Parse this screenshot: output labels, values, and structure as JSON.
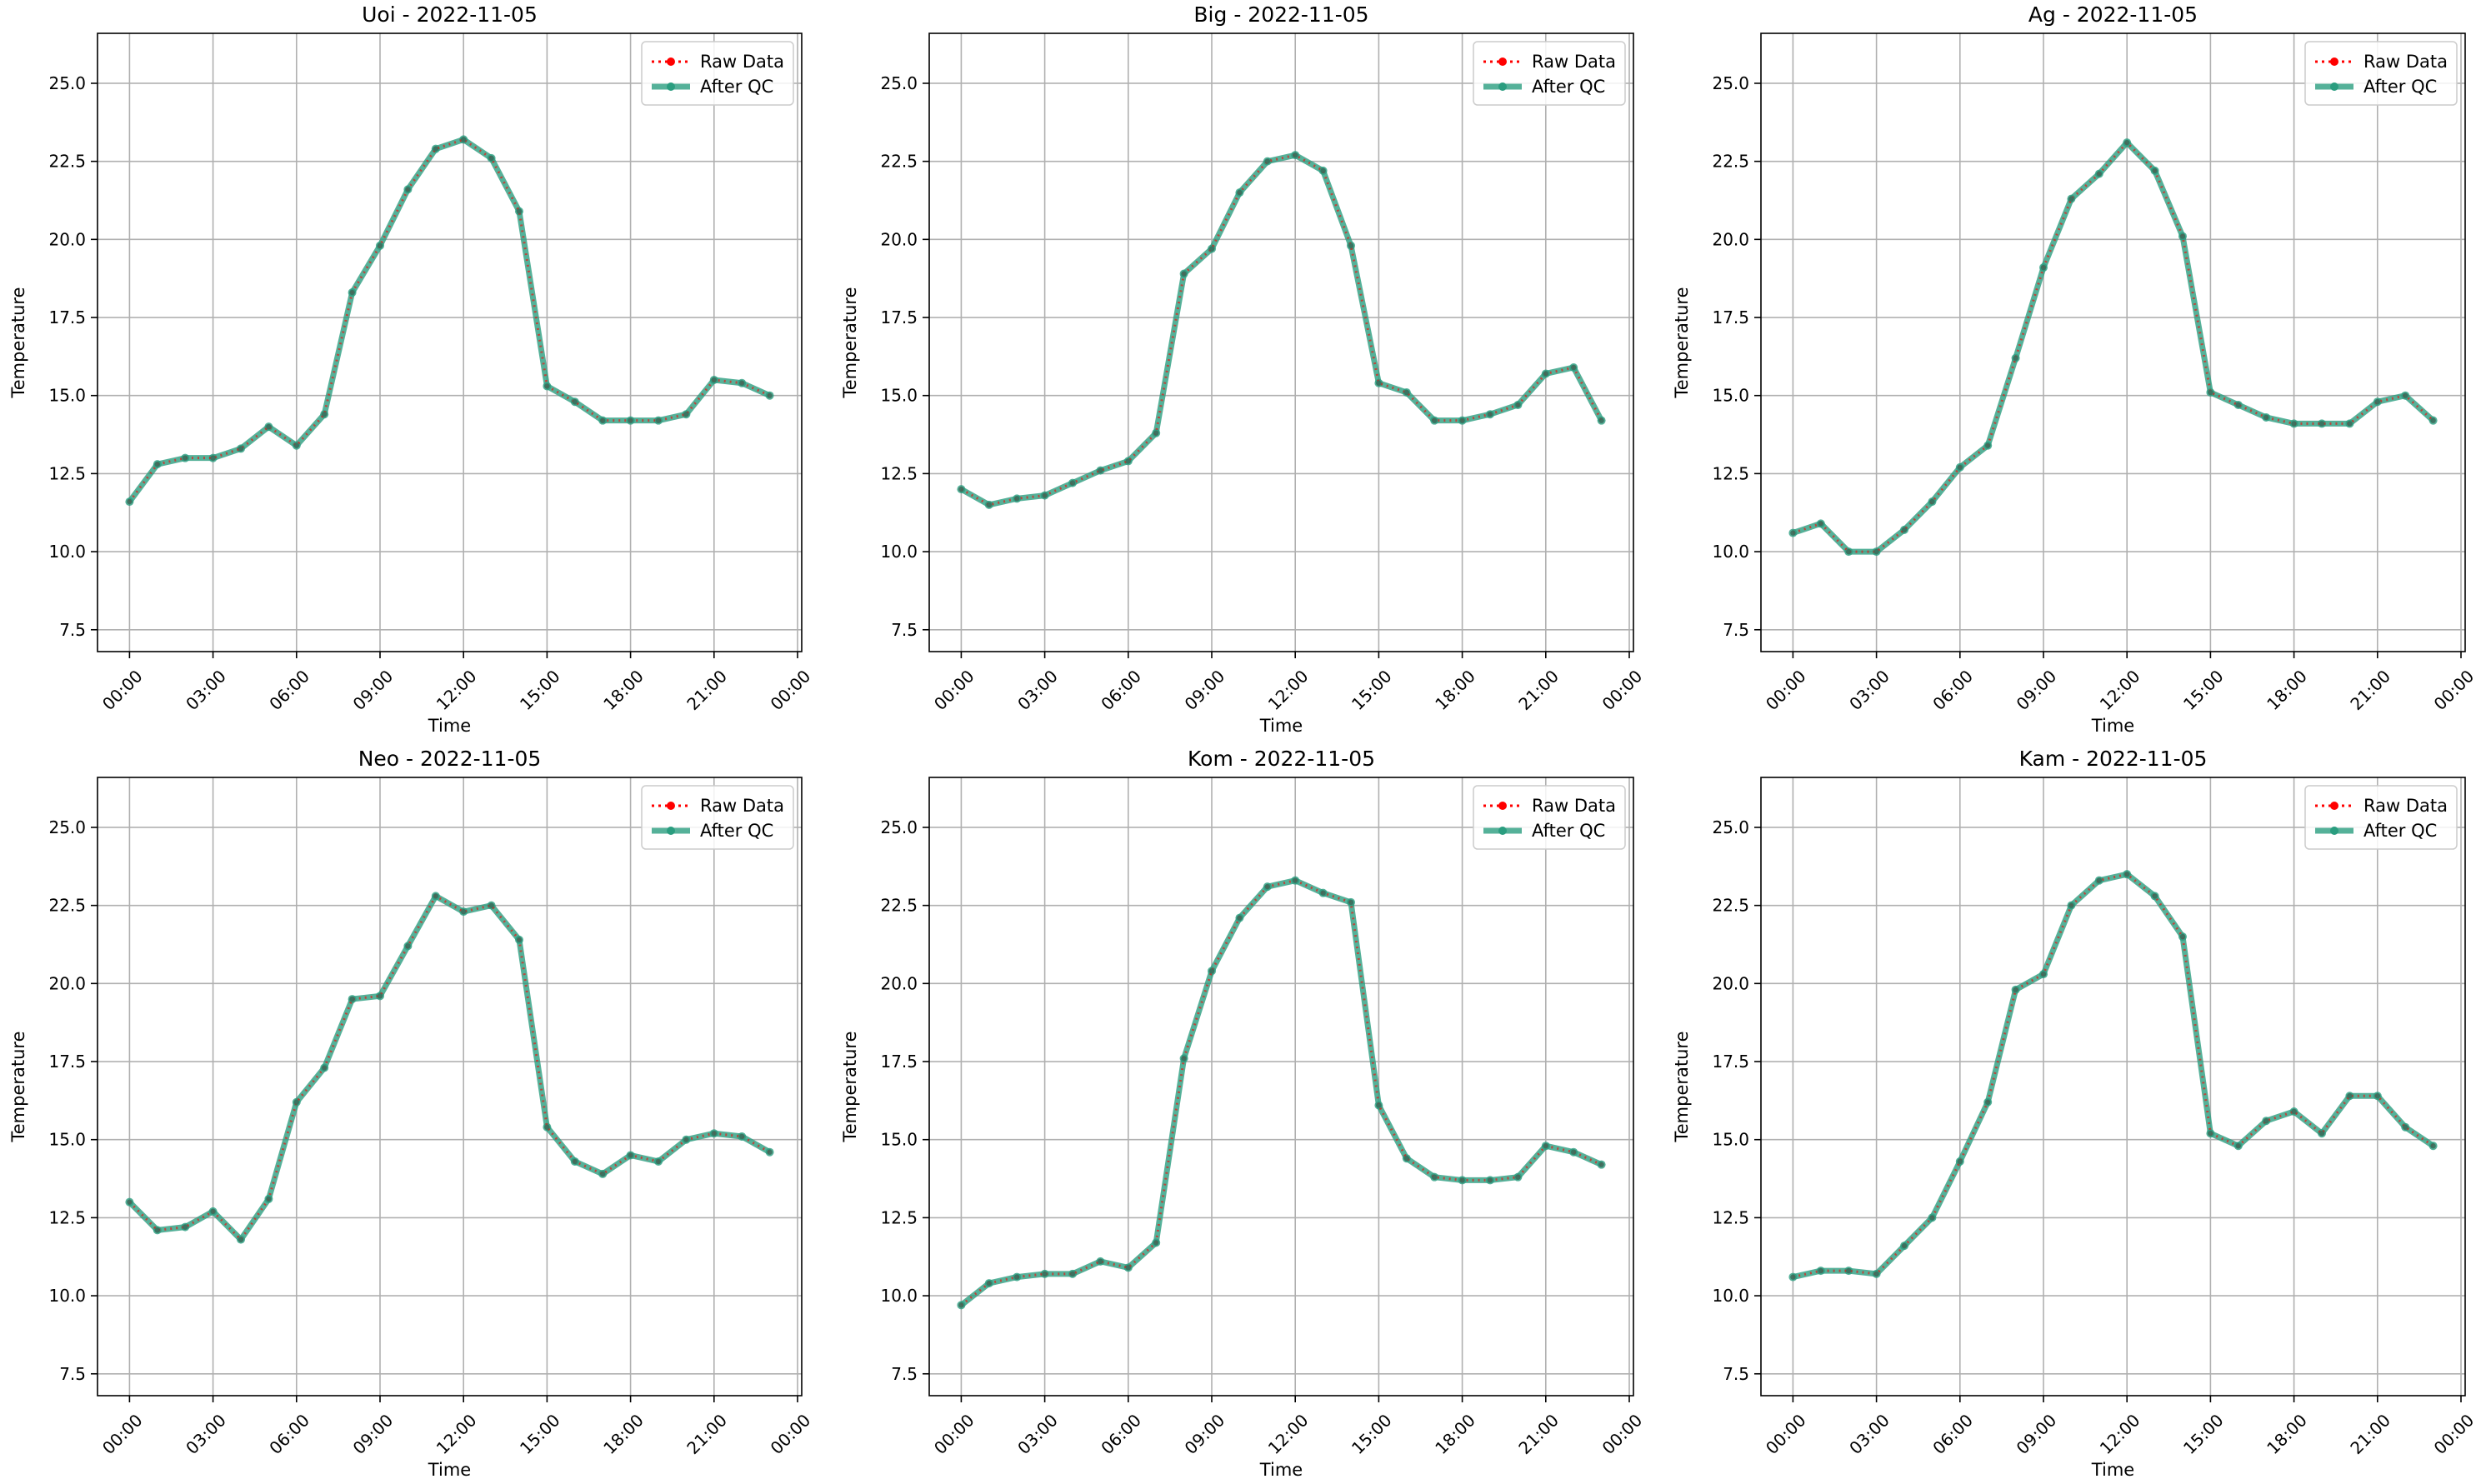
{
  "figure": {
    "legend_labels": [
      "Raw Data",
      "After QC"
    ],
    "legend_placement": "top-right",
    "colors": {
      "raw": "#ff0000",
      "qc": "#2a9d7f",
      "qc_marker": "#3d6b5a",
      "grid": "#b0b0b0"
    }
  },
  "chart_data": [
    {
      "type": "line",
      "title": "Uoi - 2022-11-05",
      "xlabel": "Time",
      "ylabel": "Temperature",
      "xlim": [
        -1.15,
        24.15
      ],
      "ylim": [
        6.8,
        26.6
      ],
      "x_ticks": [
        "00:00",
        "03:00",
        "06:00",
        "09:00",
        "12:00",
        "15:00",
        "18:00",
        "21:00",
        "00:00"
      ],
      "y_ticks": [
        "7.5",
        "10.0",
        "12.5",
        "15.0",
        "17.5",
        "20.0",
        "22.5",
        "25.0"
      ],
      "grid": true,
      "x": [
        "00:00",
        "01:00",
        "02:00",
        "03:00",
        "04:00",
        "05:00",
        "06:00",
        "07:00",
        "08:00",
        "09:00",
        "10:00",
        "11:00",
        "12:00",
        "13:00",
        "14:00",
        "15:00",
        "16:00",
        "17:00",
        "18:00",
        "19:00",
        "20:00",
        "21:00",
        "22:00",
        "23:00"
      ],
      "series": [
        {
          "name": "Raw Data",
          "values": [
            11.6,
            12.8,
            13.0,
            13.0,
            13.3,
            14.0,
            13.4,
            14.4,
            18.3,
            19.8,
            21.6,
            22.9,
            23.2,
            22.6,
            20.9,
            15.3,
            14.8,
            14.2,
            14.2,
            14.2,
            14.4,
            15.5,
            15.4,
            15.0
          ]
        },
        {
          "name": "After QC",
          "values": [
            11.6,
            12.8,
            13.0,
            13.0,
            13.3,
            14.0,
            13.4,
            14.4,
            18.3,
            19.8,
            21.6,
            22.9,
            23.2,
            22.6,
            20.9,
            15.3,
            14.8,
            14.2,
            14.2,
            14.2,
            14.4,
            15.5,
            15.4,
            15.0
          ]
        }
      ]
    },
    {
      "type": "line",
      "title": "Big - 2022-11-05",
      "xlabel": "Time",
      "ylabel": "Temperature",
      "xlim": [
        -1.15,
        24.15
      ],
      "ylim": [
        6.8,
        26.6
      ],
      "x_ticks": [
        "00:00",
        "03:00",
        "06:00",
        "09:00",
        "12:00",
        "15:00",
        "18:00",
        "21:00",
        "00:00"
      ],
      "y_ticks": [
        "7.5",
        "10.0",
        "12.5",
        "15.0",
        "17.5",
        "20.0",
        "22.5",
        "25.0"
      ],
      "grid": true,
      "x": [
        "00:00",
        "01:00",
        "02:00",
        "03:00",
        "04:00",
        "05:00",
        "06:00",
        "07:00",
        "08:00",
        "09:00",
        "10:00",
        "11:00",
        "12:00",
        "13:00",
        "14:00",
        "15:00",
        "16:00",
        "17:00",
        "18:00",
        "19:00",
        "20:00",
        "21:00",
        "22:00",
        "23:00"
      ],
      "series": [
        {
          "name": "Raw Data",
          "values": [
            12.0,
            11.5,
            11.7,
            11.8,
            12.2,
            12.6,
            12.9,
            13.8,
            18.9,
            19.7,
            21.5,
            22.5,
            22.7,
            22.2,
            19.8,
            15.4,
            15.1,
            14.2,
            14.2,
            14.4,
            14.7,
            15.7,
            15.9,
            14.2
          ]
        },
        {
          "name": "After QC",
          "values": [
            12.0,
            11.5,
            11.7,
            11.8,
            12.2,
            12.6,
            12.9,
            13.8,
            18.9,
            19.7,
            21.5,
            22.5,
            22.7,
            22.2,
            19.8,
            15.4,
            15.1,
            14.2,
            14.2,
            14.4,
            14.7,
            15.7,
            15.9,
            14.2
          ]
        }
      ]
    },
    {
      "type": "line",
      "title": "Ag - 2022-11-05",
      "xlabel": "Time",
      "ylabel": "Temperature",
      "xlim": [
        -1.15,
        24.15
      ],
      "ylim": [
        6.8,
        26.6
      ],
      "x_ticks": [
        "00:00",
        "03:00",
        "06:00",
        "09:00",
        "12:00",
        "15:00",
        "18:00",
        "21:00",
        "00:00"
      ],
      "y_ticks": [
        "7.5",
        "10.0",
        "12.5",
        "15.0",
        "17.5",
        "20.0",
        "22.5",
        "25.0"
      ],
      "grid": true,
      "x": [
        "00:00",
        "01:00",
        "02:00",
        "03:00",
        "04:00",
        "05:00",
        "06:00",
        "07:00",
        "08:00",
        "09:00",
        "10:00",
        "11:00",
        "12:00",
        "13:00",
        "14:00",
        "15:00",
        "16:00",
        "17:00",
        "18:00",
        "19:00",
        "20:00",
        "21:00",
        "22:00",
        "23:00"
      ],
      "series": [
        {
          "name": "Raw Data",
          "values": [
            10.6,
            10.9,
            10.0,
            10.0,
            10.7,
            11.6,
            12.7,
            13.4,
            16.2,
            19.1,
            21.3,
            22.1,
            23.1,
            22.2,
            20.1,
            15.1,
            14.7,
            14.3,
            14.1,
            14.1,
            14.1,
            14.8,
            15.0,
            14.2
          ]
        },
        {
          "name": "After QC",
          "values": [
            10.6,
            10.9,
            10.0,
            10.0,
            10.7,
            11.6,
            12.7,
            13.4,
            16.2,
            19.1,
            21.3,
            22.1,
            23.1,
            22.2,
            20.1,
            15.1,
            14.7,
            14.3,
            14.1,
            14.1,
            14.1,
            14.8,
            15.0,
            14.2
          ]
        }
      ]
    },
    {
      "type": "line",
      "title": "Neo - 2022-11-05",
      "xlabel": "Time",
      "ylabel": "Temperature",
      "xlim": [
        -1.15,
        24.15
      ],
      "ylim": [
        6.8,
        26.6
      ],
      "x_ticks": [
        "00:00",
        "03:00",
        "06:00",
        "09:00",
        "12:00",
        "15:00",
        "18:00",
        "21:00",
        "00:00"
      ],
      "y_ticks": [
        "7.5",
        "10.0",
        "12.5",
        "15.0",
        "17.5",
        "20.0",
        "22.5",
        "25.0"
      ],
      "grid": true,
      "x": [
        "00:00",
        "01:00",
        "02:00",
        "03:00",
        "04:00",
        "05:00",
        "06:00",
        "07:00",
        "08:00",
        "09:00",
        "10:00",
        "11:00",
        "12:00",
        "13:00",
        "14:00",
        "15:00",
        "16:00",
        "17:00",
        "18:00",
        "19:00",
        "20:00",
        "21:00",
        "22:00",
        "23:00"
      ],
      "series": [
        {
          "name": "Raw Data",
          "values": [
            13.0,
            12.1,
            12.2,
            12.7,
            11.8,
            13.1,
            16.2,
            17.3,
            19.5,
            19.6,
            21.2,
            22.8,
            22.3,
            22.5,
            21.4,
            15.4,
            14.3,
            13.9,
            14.5,
            14.3,
            15.0,
            15.2,
            15.1,
            14.6
          ]
        },
        {
          "name": "After QC",
          "values": [
            13.0,
            12.1,
            12.2,
            12.7,
            11.8,
            13.1,
            16.2,
            17.3,
            19.5,
            19.6,
            21.2,
            22.8,
            22.3,
            22.5,
            21.4,
            15.4,
            14.3,
            13.9,
            14.5,
            14.3,
            15.0,
            15.2,
            15.1,
            14.6
          ]
        }
      ]
    },
    {
      "type": "line",
      "title": "Kom - 2022-11-05",
      "xlabel": "Time",
      "ylabel": "Temperature",
      "xlim": [
        -1.15,
        24.15
      ],
      "ylim": [
        6.8,
        26.6
      ],
      "x_ticks": [
        "00:00",
        "03:00",
        "06:00",
        "09:00",
        "12:00",
        "15:00",
        "18:00",
        "21:00",
        "00:00"
      ],
      "y_ticks": [
        "7.5",
        "10.0",
        "12.5",
        "15.0",
        "17.5",
        "20.0",
        "22.5",
        "25.0"
      ],
      "grid": true,
      "x": [
        "00:00",
        "01:00",
        "02:00",
        "03:00",
        "04:00",
        "05:00",
        "06:00",
        "07:00",
        "08:00",
        "09:00",
        "10:00",
        "11:00",
        "12:00",
        "13:00",
        "14:00",
        "15:00",
        "16:00",
        "17:00",
        "18:00",
        "19:00",
        "20:00",
        "21:00",
        "22:00",
        "23:00"
      ],
      "series": [
        {
          "name": "Raw Data",
          "values": [
            9.7,
            10.4,
            10.6,
            10.7,
            10.7,
            11.1,
            10.9,
            11.7,
            17.6,
            20.4,
            22.1,
            23.1,
            23.3,
            22.9,
            22.6,
            16.1,
            14.4,
            13.8,
            13.7,
            13.7,
            13.8,
            14.8,
            14.6,
            14.2
          ]
        },
        {
          "name": "After QC",
          "values": [
            9.7,
            10.4,
            10.6,
            10.7,
            10.7,
            11.1,
            10.9,
            11.7,
            17.6,
            20.4,
            22.1,
            23.1,
            23.3,
            22.9,
            22.6,
            16.1,
            14.4,
            13.8,
            13.7,
            13.7,
            13.8,
            14.8,
            14.6,
            14.2
          ]
        }
      ]
    },
    {
      "type": "line",
      "title": "Kam - 2022-11-05",
      "xlabel": "Time",
      "ylabel": "Temperature",
      "xlim": [
        -1.15,
        24.15
      ],
      "ylim": [
        6.8,
        26.6
      ],
      "x_ticks": [
        "00:00",
        "03:00",
        "06:00",
        "09:00",
        "12:00",
        "15:00",
        "18:00",
        "21:00",
        "00:00"
      ],
      "y_ticks": [
        "7.5",
        "10.0",
        "12.5",
        "15.0",
        "17.5",
        "20.0",
        "22.5",
        "25.0"
      ],
      "grid": true,
      "x": [
        "00:00",
        "01:00",
        "02:00",
        "03:00",
        "04:00",
        "05:00",
        "06:00",
        "07:00",
        "08:00",
        "09:00",
        "10:00",
        "11:00",
        "12:00",
        "13:00",
        "14:00",
        "15:00",
        "16:00",
        "17:00",
        "18:00",
        "19:00",
        "20:00",
        "21:00",
        "22:00",
        "23:00"
      ],
      "series": [
        {
          "name": "Raw Data",
          "values": [
            10.6,
            10.8,
            10.8,
            10.7,
            11.6,
            12.5,
            14.3,
            16.2,
            19.8,
            20.3,
            22.5,
            23.3,
            23.5,
            22.8,
            21.5,
            15.2,
            14.8,
            15.6,
            15.9,
            15.2,
            16.4,
            16.4,
            15.4,
            14.8
          ]
        },
        {
          "name": "After QC",
          "values": [
            10.6,
            10.8,
            10.8,
            10.7,
            11.6,
            12.5,
            14.3,
            16.2,
            19.8,
            20.3,
            22.5,
            23.3,
            23.5,
            22.8,
            21.5,
            15.2,
            14.8,
            15.6,
            15.9,
            15.2,
            16.4,
            16.4,
            15.4,
            14.8
          ]
        }
      ]
    }
  ]
}
